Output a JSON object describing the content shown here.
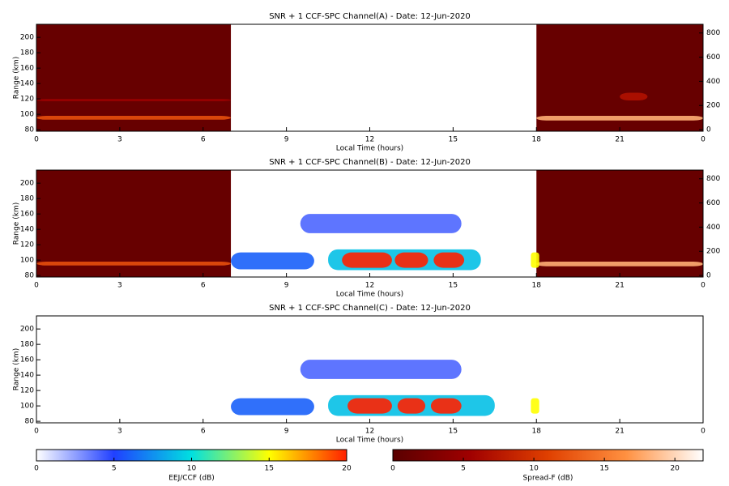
{
  "chart_data": [
    {
      "type": "heatmap",
      "title": "SNR + 1 CCF-SPC Channel(A) - Date: 12-Jun-2020",
      "x_label": "Local Time (hours)",
      "y_label": "Range (km)",
      "xlim": [
        0,
        24
      ],
      "xticks": [
        0,
        3,
        6,
        9,
        12,
        15,
        {
          "value": 18,
          "label": "18"
        },
        21,
        {
          "value": 24,
          "label": "0"
        }
      ],
      "ylim": [
        78,
        217
      ],
      "yticks": [
        80,
        100,
        120,
        140,
        160,
        180,
        200
      ],
      "y2lim": [
        -13,
        872
      ],
      "y2ticks": [
        0,
        200,
        400,
        600,
        800
      ],
      "features": [
        {
          "colorbar": 1,
          "x": [
            0,
            7
          ],
          "y": [
            78,
            217
          ],
          "value": 1
        },
        {
          "colorbar": 1,
          "x": [
            18,
            24
          ],
          "y": [
            78,
            217
          ],
          "value": 1
        },
        {
          "colorbar": 1,
          "x": [
            0,
            7
          ],
          "y": [
            93,
            98
          ],
          "value": 12
        },
        {
          "colorbar": 1,
          "x": [
            0,
            7
          ],
          "y": [
            117,
            120
          ],
          "value": 5
        },
        {
          "colorbar": 1,
          "x": [
            18,
            24
          ],
          "y": [
            92,
            98
          ],
          "value": 18
        },
        {
          "colorbar": 1,
          "x": [
            21,
            22
          ],
          "y": [
            118,
            128
          ],
          "value": 7
        }
      ]
    },
    {
      "type": "heatmap",
      "title": "SNR + 1 CCF-SPC Channel(B) - Date: 12-Jun-2020",
      "x_label": "Local Time (hours)",
      "y_label": "Range (km)",
      "xlim": [
        0,
        24
      ],
      "xticks": [
        0,
        3,
        6,
        9,
        12,
        15,
        {
          "value": 18,
          "label": "18"
        },
        21,
        {
          "value": 24,
          "label": "0"
        }
      ],
      "ylim": [
        78,
        217
      ],
      "yticks": [
        80,
        100,
        120,
        140,
        160,
        180,
        200
      ],
      "y2lim": [
        -13,
        872
      ],
      "y2ticks": [
        0,
        200,
        400,
        600,
        800
      ],
      "features": [
        {
          "colorbar": 1,
          "x": [
            0,
            7
          ],
          "y": [
            78,
            217
          ],
          "value": 1
        },
        {
          "colorbar": 1,
          "x": [
            18,
            24
          ],
          "y": [
            78,
            217
          ],
          "value": 1
        },
        {
          "colorbar": 1,
          "x": [
            0,
            7
          ],
          "y": [
            93,
            98
          ],
          "value": 12
        },
        {
          "colorbar": 1,
          "x": [
            18,
            24
          ],
          "y": [
            92,
            98
          ],
          "value": 18
        },
        {
          "colorbar": 0,
          "x": [
            7,
            10
          ],
          "y": [
            88,
            110
          ],
          "value": 6
        },
        {
          "colorbar": 0,
          "x": [
            9.5,
            15.3
          ],
          "y": [
            135,
            160
          ],
          "value": 4
        },
        {
          "colorbar": 0,
          "x": [
            10.5,
            16
          ],
          "y": [
            87,
            114
          ],
          "value": 9
        },
        {
          "colorbar": 0,
          "x": [
            11,
            12.8
          ],
          "y": [
            90,
            110
          ],
          "value": 20
        },
        {
          "colorbar": 0,
          "x": [
            12.9,
            14.1
          ],
          "y": [
            90,
            110
          ],
          "value": 20
        },
        {
          "colorbar": 0,
          "x": [
            14.3,
            15.4
          ],
          "y": [
            90,
            110
          ],
          "value": 20
        },
        {
          "colorbar": 0,
          "x": [
            17.8,
            18.1
          ],
          "y": [
            90,
            110
          ],
          "value": 15
        }
      ]
    },
    {
      "type": "heatmap",
      "title": "SNR + 1 CCF-SPC Channel(C) - Date: 12-Jun-2020",
      "x_label": "Local Time (hours)",
      "y_label": "Range (km)",
      "xlim": [
        0,
        24
      ],
      "xticks": [
        0,
        3,
        6,
        9,
        12,
        15,
        {
          "value": 18,
          "label": "18"
        },
        21,
        {
          "value": 24,
          "label": "0"
        }
      ],
      "ylim": [
        78,
        217
      ],
      "yticks": [
        80,
        100,
        120,
        140,
        160,
        180,
        200
      ],
      "features": [
        {
          "colorbar": 0,
          "x": [
            7,
            10
          ],
          "y": [
            88,
            110
          ],
          "value": 6
        },
        {
          "colorbar": 0,
          "x": [
            9.5,
            15.3
          ],
          "y": [
            135,
            160
          ],
          "value": 4
        },
        {
          "colorbar": 0,
          "x": [
            10.5,
            16.5
          ],
          "y": [
            87,
            114
          ],
          "value": 9
        },
        {
          "colorbar": 0,
          "x": [
            11.2,
            12.8
          ],
          "y": [
            90,
            110
          ],
          "value": 20
        },
        {
          "colorbar": 0,
          "x": [
            13,
            14
          ],
          "y": [
            90,
            110
          ],
          "value": 20
        },
        {
          "colorbar": 0,
          "x": [
            14.2,
            15.3
          ],
          "y": [
            90,
            110
          ],
          "value": 20
        },
        {
          "colorbar": 0,
          "x": [
            17.8,
            18.1
          ],
          "y": [
            90,
            110
          ],
          "value": 15
        }
      ]
    }
  ],
  "colorbars": [
    {
      "label": "EEJ/CCF (dB)",
      "lim": [
        0,
        20
      ],
      "ticks": [
        0,
        5,
        10,
        15,
        20
      ],
      "colors": [
        "#ffffff",
        "#2040ff",
        "#00e0e0",
        "#ffff00",
        "#ff2000"
      ]
    },
    {
      "label": "Spread-F (dB)",
      "lim": [
        0,
        22
      ],
      "ticks": [
        0,
        5,
        10,
        15,
        20
      ],
      "colors": [
        "#5a0000",
        "#a00000",
        "#e04000",
        "#ff9040",
        "#ffffff"
      ]
    }
  ]
}
